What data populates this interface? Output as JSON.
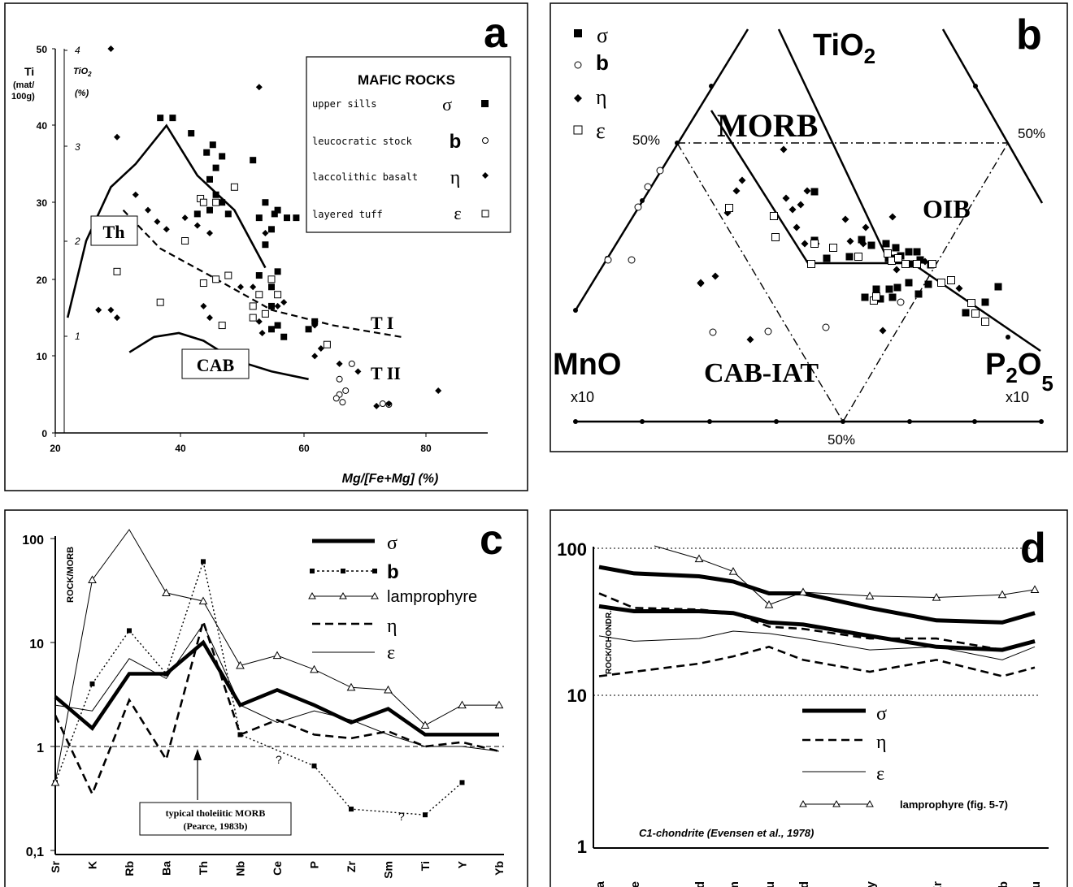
{
  "panels": [
    {
      "letter": "a",
      "axis": {
        "x_ticks": [
          "20",
          "40",
          "60",
          "80"
        ],
        "xlabel": "Mg/[Fe+Mg] (%)",
        "y_ticks": [
          "0",
          "10",
          "20",
          "30",
          "40",
          "50"
        ],
        "ylabel_1": "Ti",
        "ylabel_2": "(mat/",
        "ylabel_3": "100g)",
        "ti02_ticks": [
          "1",
          "2",
          "3",
          "4"
        ],
        "ti02_label_1": "TiO",
        "ti02_label_sub": "2",
        "ti02_label_2": "(%)"
      },
      "legend": {
        "title": "MAFIC ROCKS",
        "rows": [
          {
            "label": "upper sills",
            "symbol": "σ"
          },
          {
            "label": "leucocratic stock",
            "symbol": "b"
          },
          {
            "label": "laccolithic basalt",
            "symbol": "η"
          },
          {
            "label": "layered tuff",
            "symbol": "ε"
          }
        ]
      },
      "labels": {
        "th": "Th",
        "cab": "CAB",
        "t1": "T I",
        "t2": "T II"
      }
    },
    {
      "letter": "b",
      "legend": [
        "σ",
        "b",
        "η",
        "ε"
      ],
      "labels": {
        "tio2": "TiO",
        "tio2_sub": "2",
        "morb": "MORB",
        "oib": "OIB",
        "cab_iat": "CAB-IAT",
        "mno": "MnO",
        "mno_x": "x10",
        "p2o5": "P",
        "p2o5_sub": "2",
        "p2o5_o": "O",
        "p2o5_sub2": "5",
        "p2o5_x": "x10",
        "pct_left": "50%",
        "pct_right": "50%",
        "pct_bottom": "50%"
      }
    },
    {
      "letter": "c",
      "ylabel": "ROCK/MORB",
      "y_ticks": [
        "100",
        "10",
        "1",
        "0,1"
      ],
      "legend": [
        "σ",
        "b",
        "lamprophyre",
        "η",
        "ε"
      ],
      "annotation": {
        "line1": "typical tholeiitic MORB",
        "line2": "(Pearce, 1983b)"
      },
      "qmarks": [
        "?",
        "?"
      ]
    },
    {
      "letter": "d",
      "ylabel": "ROCK/CHONDR.",
      "y_ticks": [
        "100",
        "10",
        "1"
      ],
      "legend": [
        "σ",
        "η",
        "ε",
        "lamprophyre (fig. 5-7)"
      ],
      "note": "C1-chondrite (Evensen et al., 1978)"
    }
  ],
  "chart_data": [
    {
      "type": "scatter",
      "panel": "a",
      "xlabel": "Mg/[Fe+Mg] (%)",
      "ylabel": "Ti (mat/100g)",
      "xlim": [
        20,
        90
      ],
      "ylim": [
        0,
        50
      ],
      "series": [
        {
          "name": "upper sills",
          "marker": "filled-square",
          "points": [
            [
              37,
              41
            ],
            [
              39,
              41
            ],
            [
              42,
              39
            ],
            [
              44.5,
              36.5
            ],
            [
              45.5,
              37.5
            ],
            [
              47,
              36
            ],
            [
              46,
              34.5
            ],
            [
              45,
              33
            ],
            [
              46,
              31
            ],
            [
              47,
              30
            ],
            [
              48,
              28.5
            ],
            [
              52,
              35.5
            ],
            [
              53,
              28
            ],
            [
              54,
              30
            ],
            [
              55.5,
              28.5
            ],
            [
              54,
              24.5
            ],
            [
              55,
              26.5
            ],
            [
              56,
              29
            ],
            [
              57.5,
              28
            ],
            [
              59,
              28
            ],
            [
              53,
              20.5
            ],
            [
              55,
              19
            ],
            [
              56,
              21
            ],
            [
              55,
              16.5
            ],
            [
              56,
              14
            ],
            [
              55,
              13.5
            ],
            [
              57,
              12.5
            ],
            [
              61,
              13.5
            ],
            [
              62,
              14.5
            ],
            [
              45,
              29
            ],
            [
              43,
              28.5
            ]
          ]
        },
        {
          "name": "leucocratic stock",
          "marker": "open-circle",
          "points": [
            [
              68,
              9
            ],
            [
              66,
              7
            ],
            [
              67,
              5.5
            ],
            [
              66,
              5
            ],
            [
              65.5,
              4.5
            ],
            [
              66.5,
              4
            ],
            [
              73,
              3.8
            ],
            [
              74,
              3.7
            ]
          ]
        },
        {
          "name": "laccolithic basalt",
          "marker": "filled-diamond",
          "points": [
            [
              29,
              50
            ],
            [
              30,
              38.5
            ],
            [
              33,
              31
            ],
            [
              35,
              29
            ],
            [
              36.5,
              27.5
            ],
            [
              38,
              26.5
            ],
            [
              41,
              28
            ],
            [
              43,
              27
            ],
            [
              45,
              26
            ],
            [
              27,
              16
            ],
            [
              29,
              16
            ],
            [
              30,
              15
            ],
            [
              44,
              16.5
            ],
            [
              45,
              15
            ],
            [
              50,
              19
            ],
            [
              52,
              19
            ],
            [
              53,
              14.5
            ],
            [
              54,
              26
            ],
            [
              52,
              15
            ],
            [
              53.5,
              13
            ],
            [
              56,
              16.5
            ],
            [
              57,
              17
            ],
            [
              62,
              14
            ],
            [
              62,
              10
            ],
            [
              63,
              11
            ],
            [
              66,
              9
            ],
            [
              69,
              8
            ],
            [
              72,
              3.5
            ],
            [
              74,
              3.8
            ],
            [
              82,
              5.5
            ],
            [
              53,
              45
            ]
          ]
        },
        {
          "name": "layered tuff",
          "marker": "open-square",
          "points": [
            [
              30,
              21
            ],
            [
              37,
              17
            ],
            [
              41,
              25
            ],
            [
              43.5,
              30.5
            ],
            [
              44,
              30
            ],
            [
              46,
              20
            ],
            [
              47,
              14
            ],
            [
              48,
              20.5
            ],
            [
              49,
              32
            ],
            [
              52,
              16.5
            ],
            [
              53,
              18
            ],
            [
              54,
              15.5
            ],
            [
              55,
              20
            ],
            [
              56,
              18
            ],
            [
              64,
              11.5
            ],
            [
              46,
              30
            ],
            [
              44,
              19.5
            ],
            [
              52,
              15
            ]
          ]
        }
      ],
      "curves": [
        {
          "name": "Th",
          "style": "solid",
          "points": [
            [
              22,
              15
            ],
            [
              25,
              25
            ],
            [
              29,
              32
            ],
            [
              33,
              35
            ],
            [
              38,
              40
            ],
            [
              43,
              33.5
            ],
            [
              49,
              29
            ],
            [
              54,
              21.5
            ]
          ]
        },
        {
          "name": "T I",
          "style": "dashed",
          "points": [
            [
              31,
              29
            ],
            [
              37,
              24
            ],
            [
              45,
              20.5
            ],
            [
              55,
              16
            ],
            [
              65,
              14
            ],
            [
              76,
              12.5
            ]
          ]
        },
        {
          "name": "T II / CAB",
          "style": "solid",
          "points": [
            [
              32,
              10.5
            ],
            [
              36,
              12.5
            ],
            [
              40,
              13
            ],
            [
              44,
              12
            ],
            [
              49,
              9.5
            ],
            [
              55,
              8
            ],
            [
              61,
              7
            ]
          ]
        }
      ]
    },
    {
      "type": "scatter",
      "panel": "b",
      "apexes": [
        "TiO2",
        "MnO x10",
        "P2O5 x10"
      ],
      "fields": [
        "MORB",
        "OIB",
        "CAB-IAT"
      ],
      "series": [
        {
          "name": "σ",
          "marker": "filled-square",
          "n_points": 28
        },
        {
          "name": "b",
          "marker": "open-circle",
          "n_points": 9
        },
        {
          "name": "η",
          "marker": "filled-diamond",
          "n_points": 24
        },
        {
          "name": "ε",
          "marker": "open-square",
          "n_points": 20
        }
      ]
    },
    {
      "type": "line",
      "panel": "c",
      "ylabel": "ROCK/MORB",
      "yscale": "log",
      "ylim": [
        0.1,
        100
      ],
      "categories": [
        "Sr",
        "K",
        "Rb",
        "Ba",
        "Th",
        "Nb",
        "Ce",
        "P",
        "Zr",
        "Sm",
        "Ti",
        "Y",
        "Yb"
      ],
      "series": [
        {
          "name": "σ",
          "values": [
            3,
            1.5,
            5,
            5,
            10,
            2.5,
            3.5,
            2.5,
            1.7,
            2.3,
            1.3,
            1.3,
            1.3
          ]
        },
        {
          "name": "b",
          "values": [
            0.45,
            4,
            13,
            5,
            60,
            1.3,
            null,
            0.65,
            0.25,
            null,
            0.22,
            0.45,
            null
          ]
        },
        {
          "name": "lamprophyre",
          "values": [
            0.45,
            40,
            130,
            30,
            25,
            6,
            7.5,
            5.5,
            3.7,
            3.5,
            1.6,
            2.5,
            2.5
          ]
        },
        {
          "name": "η",
          "values": [
            2,
            0.35,
            2.8,
            0.75,
            16,
            1.3,
            1.8,
            1.3,
            1.2,
            1.4,
            1,
            1.1,
            0.9
          ]
        },
        {
          "name": "ε",
          "values": [
            2.5,
            2.2,
            7,
            4.5,
            15,
            2.5,
            1.7,
            2.2,
            1.8,
            1.3,
            1,
            1,
            0.9
          ]
        }
      ],
      "reference_line": 1
    },
    {
      "type": "line",
      "panel": "d",
      "ylabel": "ROCK/CHONDR.",
      "yscale": "log",
      "ylim": [
        1,
        100
      ],
      "categories": [
        "La",
        "Ce",
        "Nd",
        "Sm",
        "Eu",
        "Gd",
        "Dy",
        "Er",
        "Yb",
        "Lu"
      ],
      "series": [
        {
          "name": "σ (upper)",
          "values": [
            75,
            68,
            65,
            60,
            50,
            50,
            40,
            33,
            32,
            37
          ]
        },
        {
          "name": "σ (lower)",
          "values": [
            41,
            38,
            38,
            37,
            32,
            31,
            26,
            22,
            21,
            24
          ]
        },
        {
          "name": "η (upper)",
          "values": [
            50,
            40,
            39,
            37,
            30,
            29,
            25,
            25,
            21,
            24
          ]
        },
        {
          "name": "η (lower)",
          "values": [
            14,
            15,
            17,
            19,
            22,
            18,
            15,
            18,
            14,
            16
          ]
        },
        {
          "name": "ε",
          "values": [
            26,
            24,
            25,
            28,
            27,
            25,
            21,
            22,
            18,
            22
          ]
        },
        {
          "name": "lamprophyre (fig. 5-7)",
          "values": [
            null,
            130,
            85,
            70,
            42,
            51,
            48,
            47,
            49,
            53
          ]
        }
      ],
      "reference_lines": [
        10,
        100
      ]
    }
  ]
}
